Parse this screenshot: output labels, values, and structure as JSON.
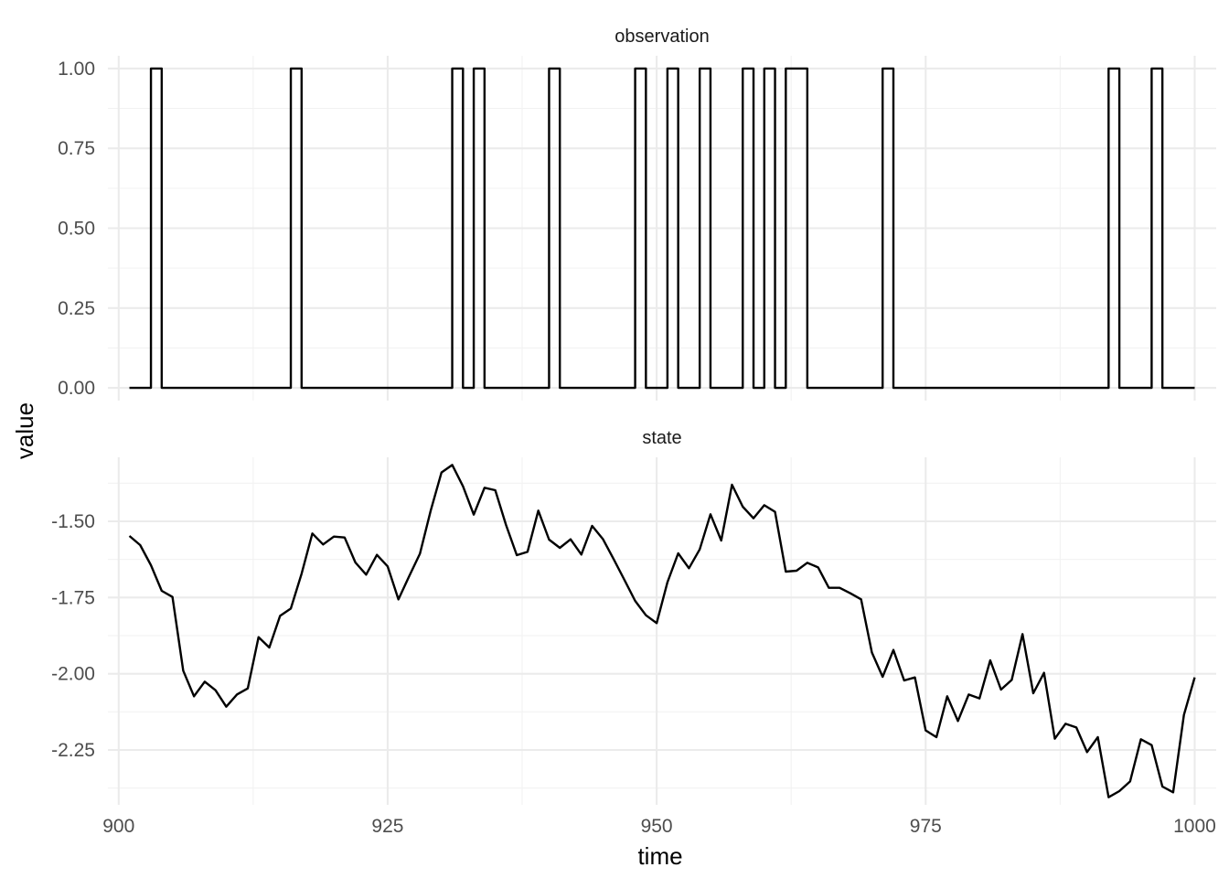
{
  "chart_data": {
    "type": "line",
    "xlabel": "time",
    "ylabel": "value",
    "xlim": [
      899,
      1002
    ],
    "x_ticks": [
      900,
      925,
      950,
      975,
      1000
    ],
    "x_tick_labels": [
      "900",
      "925",
      "950",
      "975",
      "1000"
    ],
    "grid": true,
    "panels": [
      {
        "name": "observation",
        "step": true,
        "ylim": [
          -0.04,
          1.04
        ],
        "y_ticks": [
          0,
          0.25,
          0.5,
          0.75,
          1
        ],
        "y_tick_labels": [
          "0.00",
          "0.25",
          "0.50",
          "0.75",
          "1.00"
        ],
        "x": [
          901,
          902,
          903,
          904,
          905,
          906,
          907,
          908,
          909,
          910,
          911,
          912,
          913,
          914,
          915,
          916,
          917,
          918,
          919,
          920,
          921,
          922,
          923,
          924,
          925,
          926,
          927,
          928,
          929,
          930,
          931,
          932,
          933,
          934,
          935,
          936,
          937,
          938,
          939,
          940,
          941,
          942,
          943,
          944,
          945,
          946,
          947,
          948,
          949,
          950,
          951,
          952,
          953,
          954,
          955,
          956,
          957,
          958,
          959,
          960,
          961,
          962,
          963,
          964,
          965,
          966,
          967,
          968,
          969,
          970,
          971,
          972,
          973,
          974,
          975,
          976,
          977,
          978,
          979,
          980,
          981,
          982,
          983,
          984,
          985,
          986,
          987,
          988,
          989,
          990,
          991,
          992,
          993,
          994,
          995,
          996,
          997,
          998,
          999,
          1000
        ],
        "values": [
          0,
          0,
          1,
          0,
          0,
          0,
          0,
          0,
          0,
          0,
          0,
          0,
          0,
          0,
          0,
          1,
          0,
          0,
          0,
          0,
          0,
          0,
          0,
          0,
          0,
          0,
          0,
          0,
          0,
          0,
          1,
          0,
          1,
          0,
          0,
          0,
          0,
          0,
          0,
          1,
          0,
          0,
          0,
          0,
          0,
          0,
          0,
          1,
          0,
          0,
          1,
          0,
          0,
          1,
          0,
          0,
          0,
          1,
          0,
          1,
          0,
          1,
          1,
          0,
          0,
          0,
          0,
          0,
          0,
          0,
          1,
          0,
          0,
          0,
          0,
          0,
          0,
          0,
          0,
          0,
          0,
          0,
          0,
          0,
          0,
          0,
          0,
          0,
          0,
          0,
          0,
          1,
          0,
          0,
          0,
          1,
          0,
          0,
          0,
          0
        ]
      },
      {
        "name": "state",
        "step": false,
        "ylim": [
          -2.43,
          -1.29
        ],
        "y_ticks": [
          -1.5,
          -1.75,
          -2.0,
          -2.25
        ],
        "y_tick_labels": [
          "-1.50",
          "-1.75",
          "-2.00",
          "-2.25"
        ],
        "x": [
          901,
          902,
          903,
          904,
          905,
          906,
          907,
          908,
          909,
          910,
          911,
          912,
          913,
          914,
          915,
          916,
          917,
          918,
          919,
          920,
          921,
          922,
          923,
          924,
          925,
          926,
          927,
          928,
          929,
          930,
          931,
          932,
          933,
          934,
          935,
          936,
          937,
          938,
          939,
          940,
          941,
          942,
          943,
          944,
          945,
          946,
          947,
          948,
          949,
          950,
          951,
          952,
          953,
          954,
          955,
          956,
          957,
          958,
          959,
          960,
          961,
          962,
          963,
          964,
          965,
          966,
          967,
          968,
          969,
          970,
          971,
          972,
          973,
          974,
          975,
          976,
          977,
          978,
          979,
          980,
          981,
          982,
          983,
          984,
          985,
          986,
          987,
          988,
          989,
          990,
          991,
          992,
          993,
          994,
          995,
          996,
          997,
          998,
          999,
          1000
        ],
        "values": [
          -1.548,
          -1.578,
          -1.644,
          -1.728,
          -1.748,
          -1.99,
          -2.074,
          -2.026,
          -2.054,
          -2.108,
          -2.068,
          -2.048,
          -1.88,
          -1.914,
          -1.81,
          -1.786,
          -1.672,
          -1.54,
          -1.576,
          -1.55,
          -1.553,
          -1.635,
          -1.675,
          -1.61,
          -1.648,
          -1.756,
          -1.68,
          -1.606,
          -1.465,
          -1.34,
          -1.315,
          -1.385,
          -1.478,
          -1.39,
          -1.398,
          -1.512,
          -1.611,
          -1.6,
          -1.465,
          -1.56,
          -1.587,
          -1.559,
          -1.609,
          -1.515,
          -1.558,
          -1.624,
          -1.692,
          -1.761,
          -1.808,
          -1.834,
          -1.7,
          -1.605,
          -1.654,
          -1.592,
          -1.477,
          -1.563,
          -1.38,
          -1.452,
          -1.49,
          -1.447,
          -1.469,
          -1.665,
          -1.662,
          -1.636,
          -1.651,
          -1.718,
          -1.718,
          -1.736,
          -1.756,
          -1.93,
          -2.01,
          -1.922,
          -2.022,
          -2.012,
          -2.186,
          -2.208,
          -2.074,
          -2.155,
          -2.068,
          -2.081,
          -1.956,
          -2.052,
          -2.02,
          -1.87,
          -2.064,
          -1.997,
          -2.213,
          -2.164,
          -2.176,
          -2.257,
          -2.208,
          -2.405,
          -2.385,
          -2.353,
          -2.215,
          -2.234,
          -2.37,
          -2.389,
          -2.135,
          -2.012
        ]
      }
    ]
  }
}
